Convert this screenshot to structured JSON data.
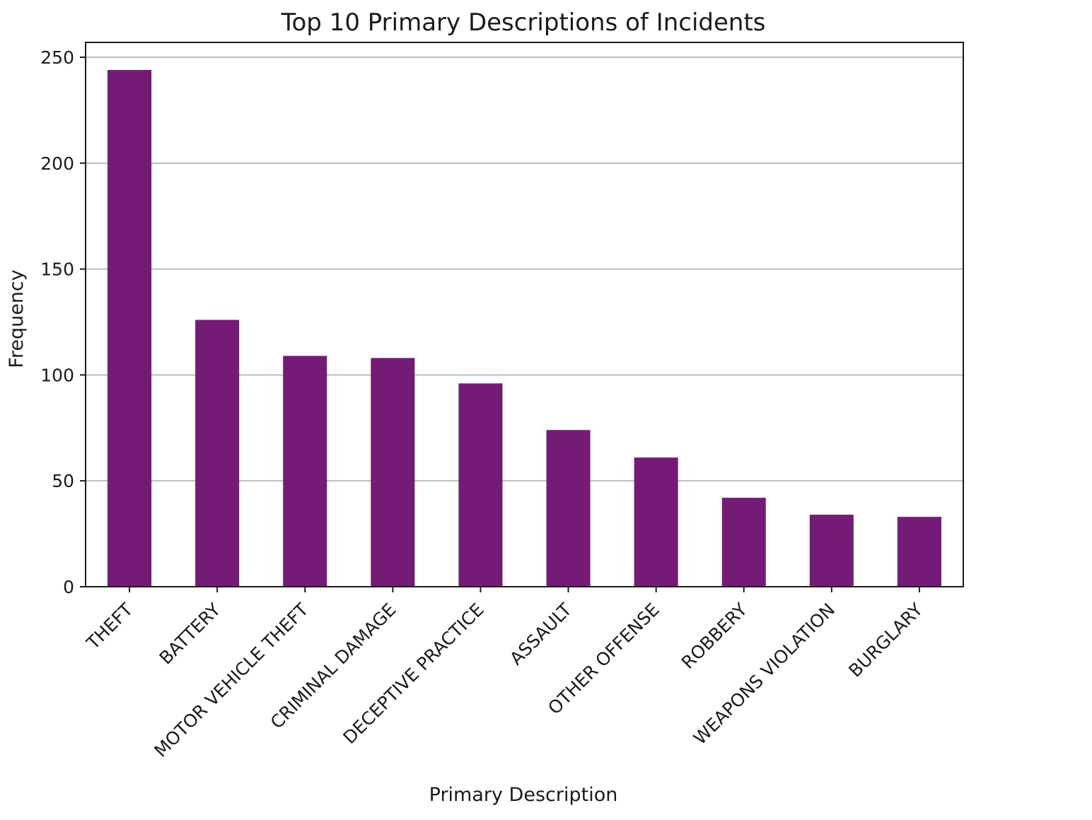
{
  "chart_data": {
    "type": "bar",
    "title": "Top 10 Primary Descriptions of Incidents",
    "xlabel": "Primary Description",
    "ylabel": "Frequency",
    "categories": [
      "THEFT",
      "BATTERY",
      "MOTOR VEHICLE THEFT",
      "CRIMINAL DAMAGE",
      "DECEPTIVE PRACTICE",
      "ASSAULT",
      "OTHER OFFENSE",
      "ROBBERY",
      "WEAPONS VIOLATION",
      "BURGLARY"
    ],
    "values": [
      244,
      126,
      109,
      108,
      96,
      74,
      61,
      42,
      34,
      33
    ],
    "ylim": [
      0,
      257
    ],
    "yticks": [
      0,
      50,
      100,
      150,
      200,
      250
    ],
    "grid": "y",
    "bar_color": "#741b76",
    "tick_rotation_deg": -45
  }
}
